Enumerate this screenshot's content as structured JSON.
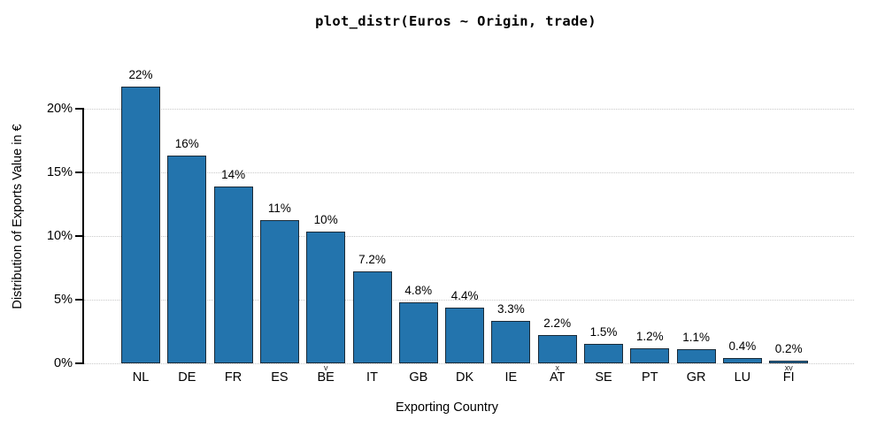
{
  "chart_data": {
    "type": "bar",
    "title": "plot_distr(Euros ~ Origin, trade)",
    "xlabel": "Exporting Country",
    "ylabel": "Distribution of Exports Value in €",
    "categories": [
      "NL",
      "DE",
      "FR",
      "ES",
      "BE",
      "IT",
      "GB",
      "DK",
      "IE",
      "AT",
      "SE",
      "PT",
      "GR",
      "LU",
      "FI"
    ],
    "category_marks": [
      "",
      "",
      "",
      "",
      "v",
      "",
      "",
      "",
      "",
      "x",
      "",
      "",
      "",
      "",
      "xv"
    ],
    "values": [
      21.7,
      16.3,
      13.9,
      11.2,
      10.3,
      7.2,
      4.8,
      4.4,
      3.3,
      2.2,
      1.5,
      1.2,
      1.1,
      0.4,
      0.2
    ],
    "bar_labels": [
      "22%",
      "16%",
      "14%",
      "11%",
      "10%",
      "7.2%",
      "4.8%",
      "4.4%",
      "3.3%",
      "2.2%",
      "1.5%",
      "1.2%",
      "1.1%",
      "0.4%",
      "0.2%"
    ],
    "ytick_labels": [
      "0%",
      "5%",
      "10%",
      "15%",
      "20%"
    ],
    "ytick_values": [
      0,
      5,
      10,
      15,
      20
    ],
    "ylim": [
      0,
      22.8
    ],
    "grid": "dotted-horizontal",
    "legend": "none",
    "bar_color": "#2374ad",
    "bar_border_color": "#1b2b38",
    "grid_color": "#c9c9c9",
    "axis_color": "#000000",
    "text_color": "#000000"
  }
}
